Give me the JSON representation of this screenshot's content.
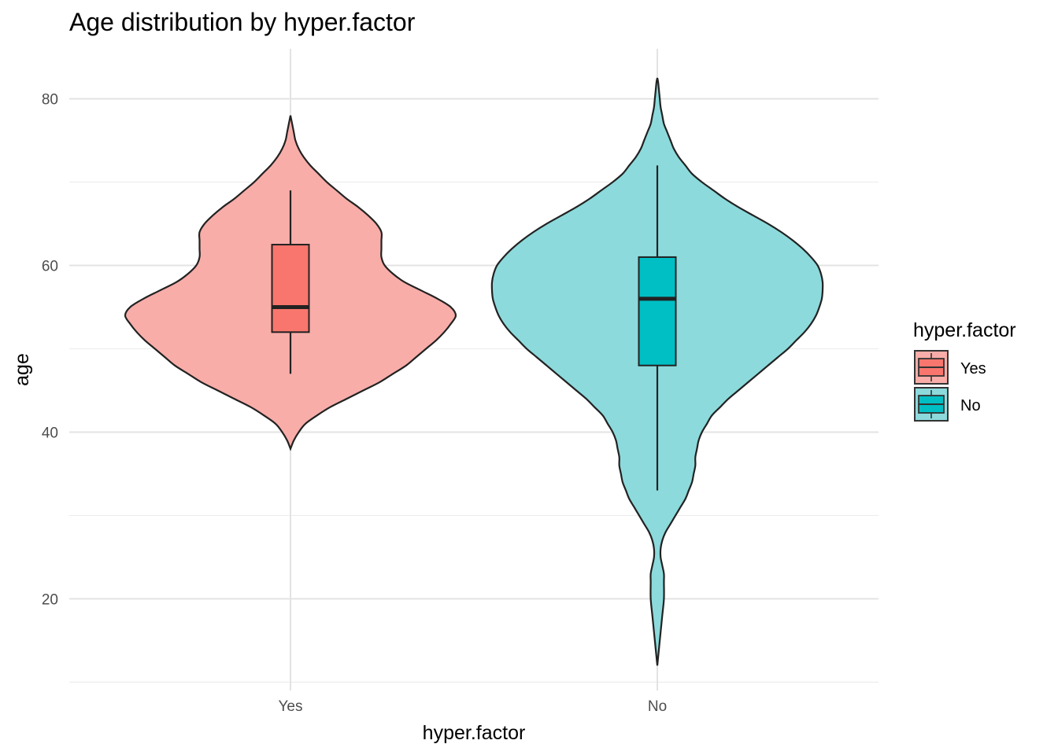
{
  "chart_data": {
    "type": "violin",
    "title": "Age distribution by hyper.factor",
    "xlabel": "hyper.factor",
    "ylabel": "age",
    "ylim": [
      9,
      86
    ],
    "y_ticks": [
      20,
      40,
      60,
      80
    ],
    "y_tick_labels": [
      "20",
      "40",
      "60",
      "80"
    ],
    "categories": [
      "Yes",
      "No"
    ],
    "legend": {
      "title": "hyper.factor",
      "position": "right",
      "entries": [
        "Yes",
        "No"
      ]
    },
    "grid": true,
    "series": [
      {
        "name": "Yes",
        "color": "#F8766D",
        "violin_fill": "#F8ADA9",
        "box": {
          "whisker_low": 47,
          "q1": 52,
          "median": 55,
          "q3": 62.5,
          "whisker_high": 69
        },
        "density": [
          [
            38,
            0.0
          ],
          [
            39,
            0.02
          ],
          [
            40,
            0.05
          ],
          [
            41,
            0.09
          ],
          [
            42,
            0.16
          ],
          [
            43,
            0.24
          ],
          [
            44,
            0.34
          ],
          [
            45,
            0.44
          ],
          [
            46,
            0.54
          ],
          [
            47,
            0.62
          ],
          [
            48,
            0.7
          ],
          [
            49,
            0.76
          ],
          [
            50,
            0.82
          ],
          [
            51,
            0.88
          ],
          [
            52,
            0.93
          ],
          [
            53,
            0.97
          ],
          [
            54,
            1.0
          ],
          [
            55,
            0.97
          ],
          [
            56,
            0.89
          ],
          [
            57,
            0.79
          ],
          [
            58,
            0.69
          ],
          [
            59,
            0.62
          ],
          [
            60,
            0.57
          ],
          [
            61,
            0.55
          ],
          [
            62,
            0.55
          ],
          [
            63,
            0.55
          ],
          [
            64,
            0.55
          ],
          [
            65,
            0.52
          ],
          [
            66,
            0.47
          ],
          [
            67,
            0.41
          ],
          [
            68,
            0.34
          ],
          [
            69,
            0.28
          ],
          [
            70,
            0.22
          ],
          [
            71,
            0.17
          ],
          [
            72,
            0.12
          ],
          [
            73,
            0.08
          ],
          [
            74,
            0.05
          ],
          [
            75,
            0.03
          ],
          [
            76,
            0.02
          ],
          [
            77,
            0.01
          ],
          [
            78,
            0.0
          ]
        ]
      },
      {
        "name": "No",
        "color": "#00BFC4",
        "violin_fill": "#8CDADC",
        "box": {
          "whisker_low": 33,
          "q1": 48,
          "median": 56,
          "q3": 61,
          "whisker_high": 72
        },
        "density": [
          [
            12,
            0.0
          ],
          [
            14,
            0.01
          ],
          [
            16,
            0.02
          ],
          [
            18,
            0.03
          ],
          [
            20,
            0.04
          ],
          [
            22,
            0.04
          ],
          [
            23,
            0.04
          ],
          [
            24,
            0.03
          ],
          [
            25,
            0.02
          ],
          [
            26,
            0.02
          ],
          [
            27,
            0.03
          ],
          [
            28,
            0.05
          ],
          [
            29,
            0.08
          ],
          [
            30,
            0.11
          ],
          [
            31,
            0.14
          ],
          [
            32,
            0.17
          ],
          [
            33,
            0.19
          ],
          [
            34,
            0.21
          ],
          [
            35,
            0.22
          ],
          [
            36,
            0.23
          ],
          [
            37,
            0.23
          ],
          [
            38,
            0.24
          ],
          [
            39,
            0.25
          ],
          [
            40,
            0.27
          ],
          [
            41,
            0.3
          ],
          [
            42,
            0.33
          ],
          [
            43,
            0.38
          ],
          [
            44,
            0.43
          ],
          [
            45,
            0.49
          ],
          [
            46,
            0.55
          ],
          [
            47,
            0.61
          ],
          [
            48,
            0.67
          ],
          [
            49,
            0.73
          ],
          [
            50,
            0.79
          ],
          [
            51,
            0.84
          ],
          [
            52,
            0.89
          ],
          [
            53,
            0.93
          ],
          [
            54,
            0.96
          ],
          [
            55,
            0.98
          ],
          [
            56,
            0.995
          ],
          [
            57,
            1.0
          ],
          [
            58,
            1.0
          ],
          [
            59,
            0.99
          ],
          [
            60,
            0.97
          ],
          [
            61,
            0.93
          ],
          [
            62,
            0.88
          ],
          [
            63,
            0.82
          ],
          [
            64,
            0.75
          ],
          [
            65,
            0.67
          ],
          [
            66,
            0.58
          ],
          [
            67,
            0.49
          ],
          [
            68,
            0.41
          ],
          [
            69,
            0.34
          ],
          [
            70,
            0.27
          ],
          [
            71,
            0.21
          ],
          [
            72,
            0.17
          ],
          [
            73,
            0.13
          ],
          [
            74,
            0.1
          ],
          [
            75,
            0.08
          ],
          [
            76,
            0.06
          ],
          [
            77,
            0.04
          ],
          [
            78,
            0.03
          ],
          [
            79,
            0.02
          ],
          [
            80,
            0.015
          ],
          [
            81,
            0.01
          ],
          [
            82,
            0.005
          ],
          [
            82.5,
            0.0
          ]
        ]
      }
    ]
  }
}
